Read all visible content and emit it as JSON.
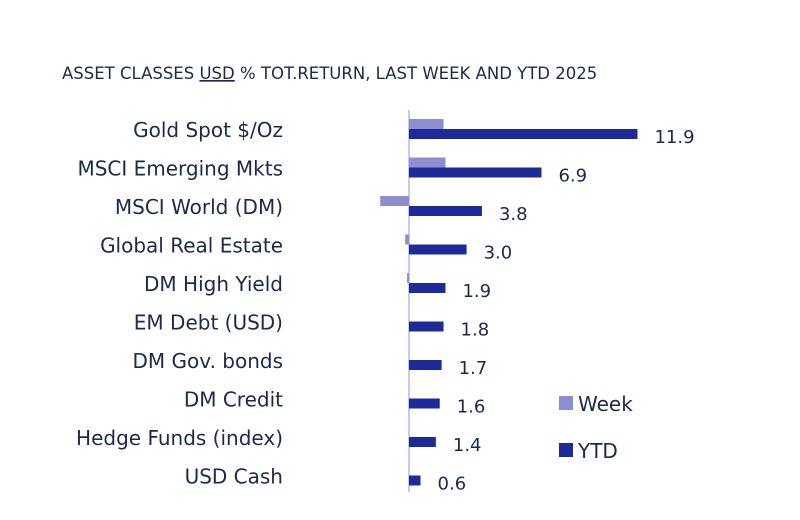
{
  "chart_data": {
    "type": "bar",
    "orientation": "horizontal",
    "title_prefix": "ASSET CLASSES ",
    "title_underlined": "USD",
    "title_suffix": " % TOT.RETURN, LAST WEEK AND YTD 2025",
    "categories": [
      "Gold Spot   $/Oz",
      "MSCI Emerging Mkts",
      "MSCI World (DM)",
      "Global Real Estate",
      "DM High Yield",
      "EM Debt (USD)",
      "DM Gov. bonds",
      "DM Credit",
      "Hedge Funds (index)",
      "USD Cash"
    ],
    "series": [
      {
        "name": "Week",
        "color": "#8b8fd0",
        "values": [
          1.8,
          1.9,
          -1.5,
          -0.2,
          -0.1,
          0.0,
          0.0,
          0.0,
          0.0,
          0.0
        ]
      },
      {
        "name": "YTD",
        "color": "#1f2a9a",
        "values": [
          11.9,
          6.9,
          3.8,
          3.0,
          1.9,
          1.8,
          1.7,
          1.6,
          1.4,
          0.6
        ]
      }
    ],
    "data_labels": [
      "11.9",
      "6.9",
      "3.8",
      "3.0",
      "1.9",
      "1.8",
      "1.7",
      "1.6",
      "1.4",
      "0.6"
    ],
    "legend_position": "right",
    "grid": false,
    "zero_line_color": "#a8bde8"
  }
}
